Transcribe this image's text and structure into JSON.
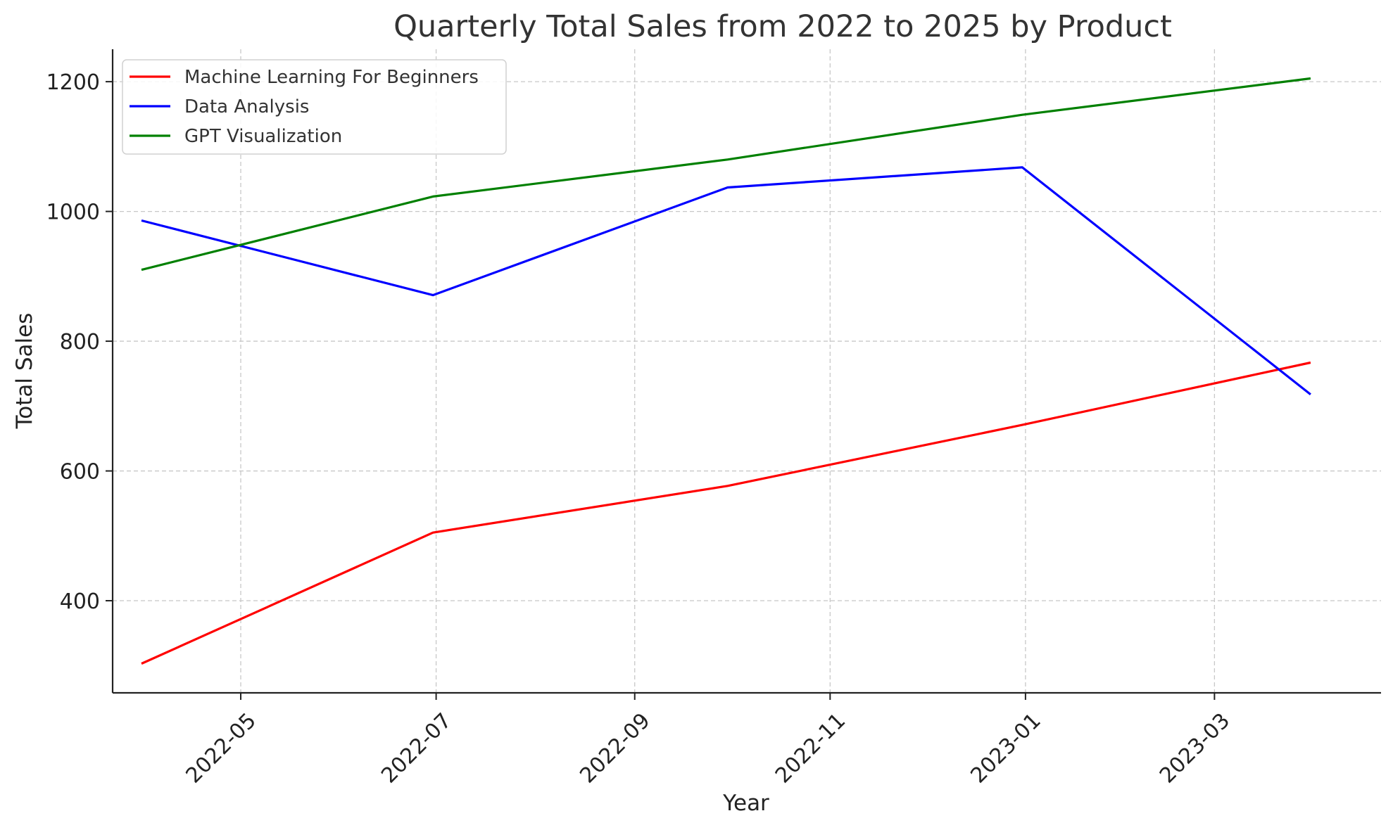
{
  "chart_data": {
    "type": "line",
    "title": "Quarterly Total Sales from 2022 to 2025 by Product",
    "xlabel": "Year",
    "ylabel": "Total Sales",
    "x": [
      "2022-03-31",
      "2022-06-30",
      "2022-09-30",
      "2022-12-31",
      "2023-03-31"
    ],
    "series": [
      {
        "name": "Machine Learning For Beginners",
        "color": "#ff0000",
        "values": [
          303,
          505,
          577,
          671,
          767
        ]
      },
      {
        "name": "Data Analysis",
        "color": "#0000ff",
        "values": [
          986,
          871,
          1037,
          1068,
          718
        ]
      },
      {
        "name": "GPT Visualization",
        "color": "#008000",
        "values": [
          910,
          1023,
          1080,
          1149,
          1205
        ]
      }
    ],
    "xlim": [
      "2022-03-22",
      "2023-04-22"
    ],
    "ylim": [
      258,
      1250
    ],
    "x_ticks": [
      "2022-05",
      "2022-07",
      "2022-09",
      "2022-11",
      "2023-01",
      "2023-03"
    ],
    "y_ticks": [
      400,
      600,
      800,
      1000,
      1200
    ],
    "grid": true,
    "legend_position": "top-left"
  }
}
